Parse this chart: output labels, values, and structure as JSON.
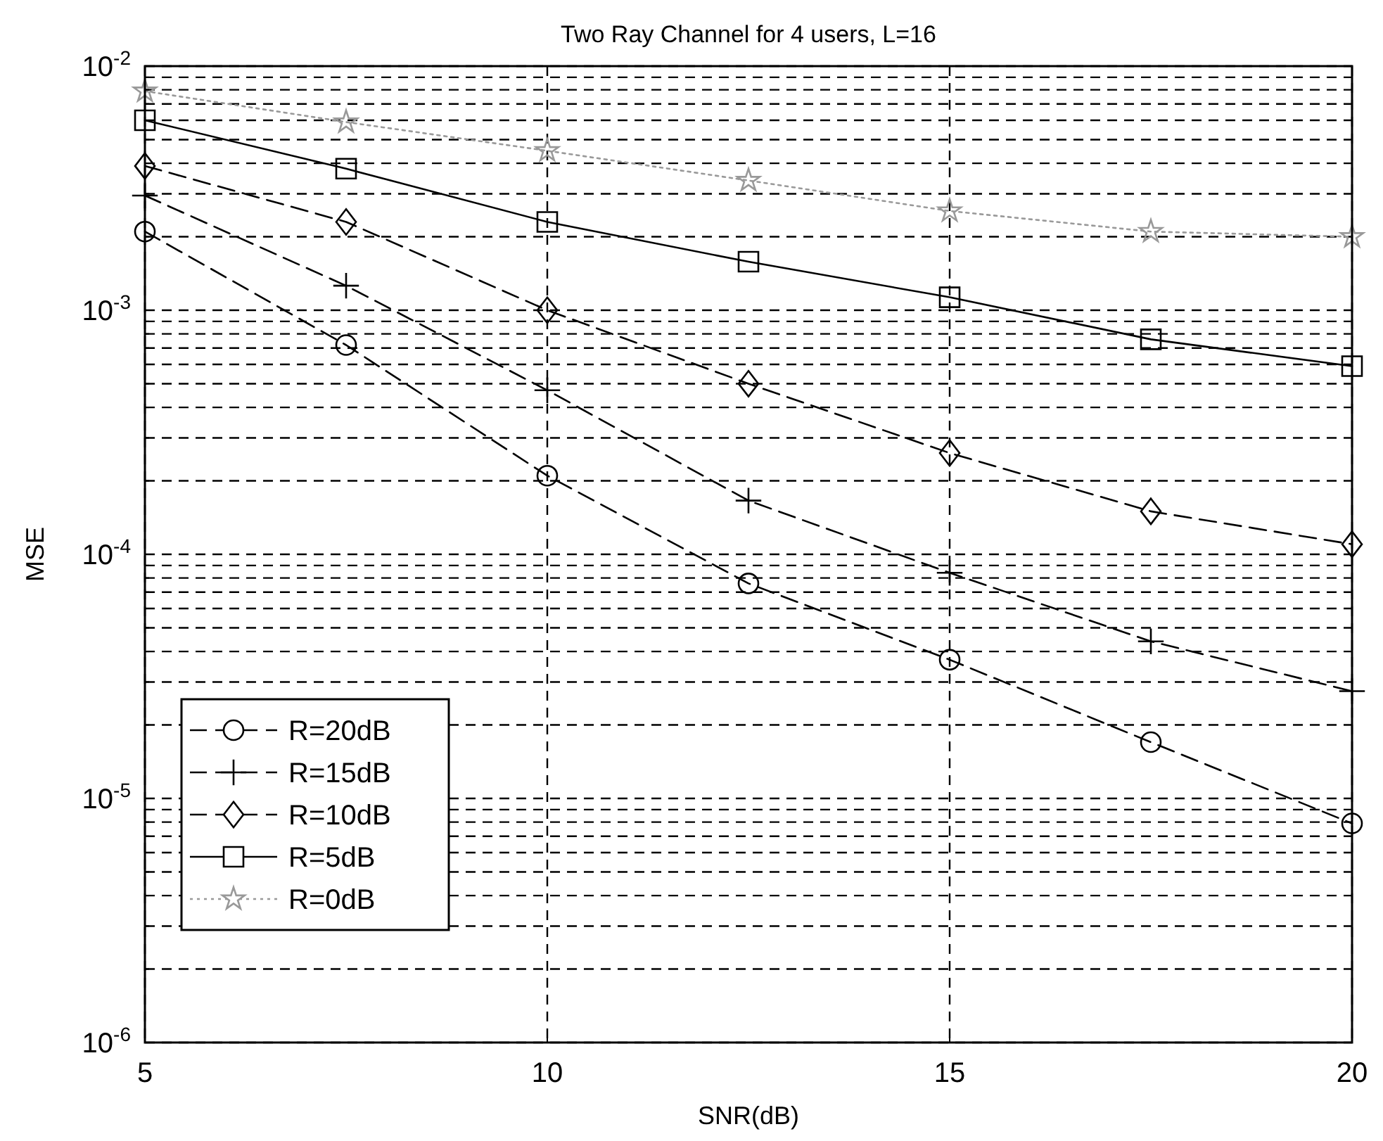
{
  "chart_data": {
    "type": "line",
    "title": "Two Ray Channel for 4 users, L=16",
    "xlabel": "SNR(dB)",
    "ylabel": "MSE",
    "log": "y",
    "grid": true,
    "legend": "bottom left",
    "x": [
      5,
      7.5,
      10,
      12.5,
      15,
      17.5,
      20
    ],
    "xlim": [
      5,
      20
    ],
    "xticks": [
      5,
      10,
      15,
      20
    ],
    "ylim": [
      1e-06,
      0.01
    ],
    "yticks": [
      {
        "value": 1e-06,
        "label": "10$^{-6}$"
      },
      {
        "value": 2e-06,
        "label": null
      },
      {
        "value": 3e-06,
        "label": null
      },
      {
        "value": 4e-06,
        "label": null
      },
      {
        "value": 5e-06,
        "label": null
      },
      {
        "value": 6e-06,
        "label": null
      },
      {
        "value": 7e-06,
        "label": null
      },
      {
        "value": 8e-06,
        "label": null
      },
      {
        "value": 9e-06,
        "label": null
      },
      {
        "value": 1e-05,
        "label": "10$^{-5}$"
      },
      {
        "value": 2e-05,
        "label": null
      },
      {
        "value": 3e-05,
        "label": null
      },
      {
        "value": 4e-05,
        "label": null
      },
      {
        "value": 5e-05,
        "label": null
      },
      {
        "value": 6e-05,
        "label": null
      },
      {
        "value": 7e-05,
        "label": null
      },
      {
        "value": 8e-05,
        "label": null
      },
      {
        "value": 9e-05,
        "label": null
      },
      {
        "value": 0.0001,
        "label": "10$^{-4}$"
      },
      {
        "value": 0.0002,
        "label": null
      },
      {
        "value": 0.0003,
        "label": null
      },
      {
        "value": 0.0004,
        "label": null
      },
      {
        "value": 0.0005,
        "label": null
      },
      {
        "value": 0.0006,
        "label": null
      },
      {
        "value": 0.0007,
        "label": null
      },
      {
        "value": 0.0008,
        "label": null
      },
      {
        "value": 0.0009,
        "label": null
      },
      {
        "value": 0.001,
        "label": "10$^{-3}$"
      },
      {
        "value": 0.002,
        "label": null
      },
      {
        "value": 0.003,
        "label": null
      },
      {
        "value": 0.004,
        "label": null
      },
      {
        "value": 0.005,
        "label": null
      },
      {
        "value": 0.006,
        "label": null
      },
      {
        "value": 0.007,
        "label": null
      },
      {
        "value": 0.008,
        "label": null
      },
      {
        "value": 0.009,
        "label": null
      },
      {
        "value": 0.01,
        "label": "10$^{-2}$"
      }
    ],
    "series": [
      {
        "name": "R=20dB",
        "color": "#000000",
        "marker": "circle",
        "line_style": "dashed",
        "values": [
          0.0021,
          0.00072,
          0.00021,
          7.6e-05,
          3.7e-05,
          1.7e-05,
          7.9e-06
        ]
      },
      {
        "name": "R=15dB",
        "color": "#000000",
        "marker": "cross",
        "line_style": "dashed",
        "values": [
          0.00295,
          0.00126,
          0.00047,
          0.000166,
          8.4e-05,
          4.4e-05,
          2.75e-05
        ]
      },
      {
        "name": "R=10dB",
        "color": "#000000",
        "marker": "diamond",
        "line_style": "dashed",
        "values": [
          0.0039,
          0.0023,
          0.001,
          0.0005,
          0.00026,
          0.00015,
          0.00011
        ]
      },
      {
        "name": "R=5dB",
        "color": "#000000",
        "marker": "square",
        "line_style": "solid",
        "values": [
          0.006,
          0.0038,
          0.0023,
          0.00158,
          0.00113,
          0.00076,
          0.00059
        ]
      },
      {
        "name": "R=0dB",
        "color": "#999999",
        "marker": "star",
        "line_style": "dotted",
        "values": [
          0.0079,
          0.0059,
          0.0045,
          0.0034,
          0.00255,
          0.0021,
          0.002
        ]
      }
    ]
  }
}
